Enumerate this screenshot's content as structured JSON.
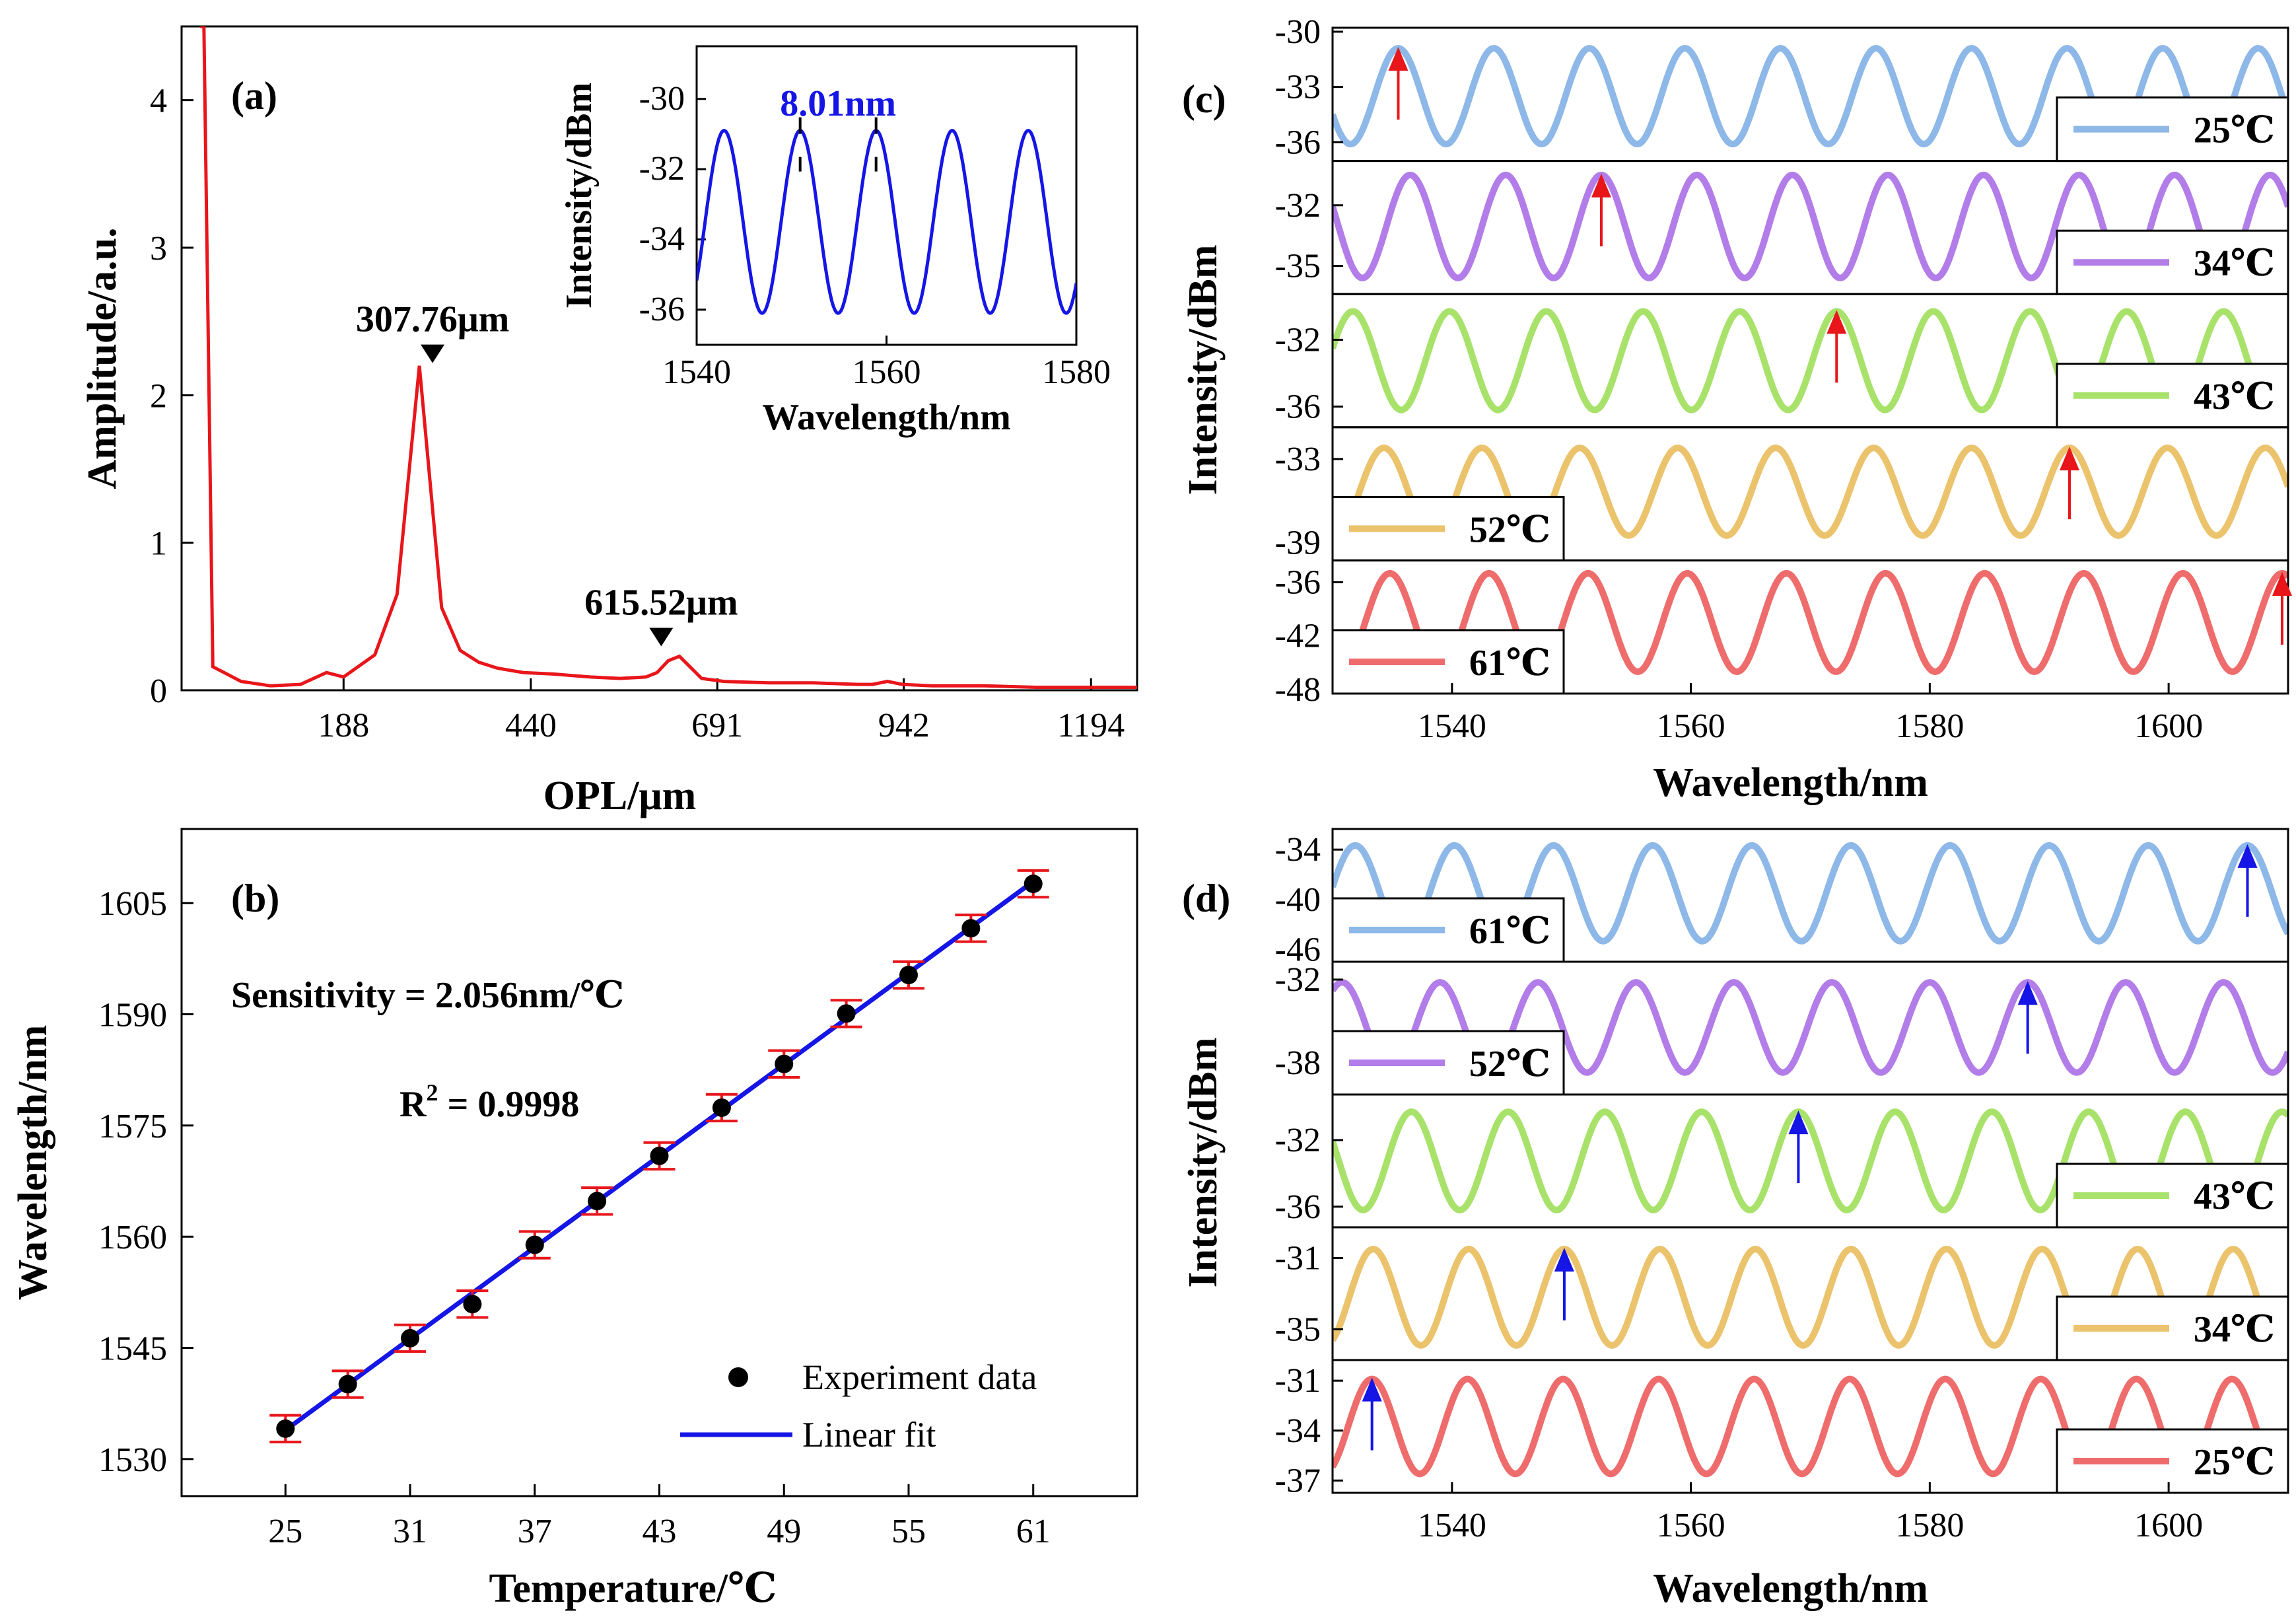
{
  "chart_data": [
    {
      "panel": "a",
      "type": "line",
      "label": "(a)",
      "xlabel": "OPL/μm",
      "ylabel": "Amplitude/a.u.",
      "xlim": [
        -30,
        1256
      ],
      "ylim": [
        0,
        4.5
      ],
      "xticks": [
        188,
        440,
        691,
        942,
        1194
      ],
      "yticks": [
        0,
        1,
        2,
        3,
        4
      ],
      "series": [
        {
          "color": "#e8161b",
          "x": [
            -5,
            0,
            12,
            50,
            90,
            130,
            165,
            188,
            230,
            260,
            290,
            320,
            345,
            370,
            395,
            430,
            470,
            520,
            560,
            595,
            610,
            625,
            640,
            670,
            700,
            760,
            820,
            880,
            900,
            920,
            940,
            980,
            1050,
            1120,
            1194,
            1256
          ],
          "y": [
            4.5,
            4.5,
            0.16,
            0.06,
            0.03,
            0.04,
            0.12,
            0.09,
            0.24,
            0.65,
            2.2,
            0.56,
            0.27,
            0.19,
            0.15,
            0.12,
            0.11,
            0.09,
            0.08,
            0.09,
            0.12,
            0.2,
            0.23,
            0.08,
            0.06,
            0.05,
            0.05,
            0.04,
            0.04,
            0.06,
            0.04,
            0.03,
            0.03,
            0.02,
            0.02,
            0.02
          ]
        }
      ],
      "annotations": [
        {
          "text": "307.76μm",
          "x": 307.76,
          "y": 2.2
        },
        {
          "text": "615.52μm",
          "x": 615.52,
          "y": 0.28
        }
      ],
      "inset": {
        "type": "line",
        "xlabel": "Wavelength/nm",
        "ylabel": "Intensity/dBm",
        "xlim": [
          1540,
          1580
        ],
        "ylim": [
          -37,
          -28.5
        ],
        "xticks": [
          1540,
          1560,
          1580
        ],
        "yticks": [
          -36,
          -34,
          -32,
          -30
        ],
        "color": "#1515e6",
        "annotation": "8.01nm",
        "marker_x": [
          1550.9,
          1558.9
        ],
        "period_nm": 8.01,
        "peak_nm": 1550.9,
        "max_dbm": -30.9,
        "min_dbm": -36.1
      }
    },
    {
      "panel": "b",
      "type": "scatter",
      "label": "(b)",
      "xlabel": "Temperature/℃",
      "ylabel": "Wavelength/nm",
      "xlim": [
        20,
        66
      ],
      "ylim": [
        1525,
        1615
      ],
      "xticks": [
        25,
        31,
        37,
        43,
        49,
        55,
        61
      ],
      "yticks": [
        1530,
        1545,
        1560,
        1575,
        1590,
        1605
      ],
      "series": [
        {
          "name": "Experiment data",
          "color": "#000000",
          "x": [
            25,
            28,
            31,
            34,
            37,
            40,
            43,
            46,
            49,
            52,
            55,
            58,
            61
          ],
          "y": [
            1534.1,
            1540.1,
            1546.3,
            1550.9,
            1558.9,
            1564.8,
            1570.9,
            1577.4,
            1583.3,
            1590.1,
            1595.3,
            1601.6,
            1607.6
          ],
          "error": 1.8,
          "error_color": "#e8161b"
        },
        {
          "name": "Linear fit",
          "color": "#1515e6",
          "slope": 2.056,
          "intercept": 1482.5,
          "x_range": [
            25,
            61
          ]
        }
      ],
      "annotations": [
        "Sensitivity = 2.056nm/℃",
        "R",
        "2",
        " = 0.9998"
      ]
    },
    {
      "panel": "c",
      "type": "line",
      "label": "(c)",
      "xlabel": "Wavelength/nm",
      "ylabel": "Intensity/dBm",
      "xlim": [
        1530,
        1610
      ],
      "xticks": [
        1540,
        1560,
        1580,
        1600
      ],
      "arrow_color": "#e8161b",
      "subplots": [
        {
          "temp": "25℃",
          "color": "#8db8e8",
          "ylim": [
            -36.8,
            -30
          ],
          "yticks": [
            -30,
            -33,
            -36
          ],
          "ytick_labels": [
            "-30",
            "-33",
            "-36"
          ],
          "period": 8.0,
          "peak": 1535.5,
          "max": -30.9,
          "min": -36.1,
          "arrow_nm": 1535.5,
          "legend_pos": "right"
        },
        {
          "temp": "34℃",
          "color": "#b27de8",
          "ylim": [
            -36.2,
            -30
          ],
          "yticks": [
            -32,
            -35
          ],
          "ytick_labels": [
            "-32",
            "-35"
          ],
          "period": 8.0,
          "peak": 1552.5,
          "max": -30.5,
          "min": -35.6,
          "arrow_nm": 1552.5,
          "legend_pos": "right"
        },
        {
          "temp": "43℃",
          "color": "#a8e26a",
          "ylim": [
            -37,
            -29.5
          ],
          "yticks": [
            -32,
            -36
          ],
          "ytick_labels": [
            "-32",
            "-36"
          ],
          "period": 8.1,
          "peak": 1572.2,
          "max": -30.3,
          "min": -36.2,
          "arrow_nm": 1572.2,
          "legend_pos": "right"
        },
        {
          "temp": "52℃",
          "color": "#ebc36c",
          "ylim": [
            -40,
            -31
          ],
          "yticks": [
            -33,
            -39
          ],
          "ytick_labels": [
            "-33",
            "-39"
          ],
          "period": 8.2,
          "peak": 1591.7,
          "max": -32.2,
          "min": -38.5,
          "arrow_nm": 1591.7,
          "legend_pos": "left"
        },
        {
          "temp": "61℃",
          "color": "#ef6c6c",
          "ylim": [
            -48,
            -34
          ],
          "yticks": [
            -36,
            -42,
            -48
          ],
          "ytick_labels": [
            "-36",
            "-42",
            "-48"
          ],
          "period": 8.3,
          "peak": 1609.5,
          "max": -35,
          "min": -46,
          "arrow_nm": 1609.5,
          "legend_pos": "left"
        }
      ]
    },
    {
      "panel": "d",
      "type": "line",
      "label": "(d)",
      "xlabel": "Wavelength/nm",
      "ylabel": "Intensity/dBm",
      "xlim": [
        1530,
        1610
      ],
      "xticks": [
        1540,
        1560,
        1580,
        1600
      ],
      "arrow_color": "#1515e6",
      "subplots": [
        {
          "temp": "61℃",
          "color": "#8db8e8",
          "ylim": [
            -47,
            -32
          ],
          "yticks": [
            -34,
            -40,
            -46
          ],
          "ytick_labels": [
            "-34",
            "-40",
            "-46"
          ],
          "period": 8.3,
          "peak": 1606.6,
          "max": -33.5,
          "min": -45,
          "arrow_nm": 1606.6,
          "legend_pos": "left"
        },
        {
          "temp": "52℃",
          "color": "#b27de8",
          "ylim": [
            -40,
            -31
          ],
          "yticks": [
            -32,
            -38
          ],
          "ytick_labels": [
            "-32",
            "-38"
          ],
          "period": 8.2,
          "peak": 1588.2,
          "max": -32.2,
          "min": -38.7,
          "arrow_nm": 1588.2,
          "legend_pos": "left"
        },
        {
          "temp": "43℃",
          "color": "#a8e26a",
          "ylim": [
            -37,
            -29.5
          ],
          "yticks": [
            -32,
            -36
          ],
          "ytick_labels": [
            "-32",
            "-36"
          ],
          "period": 8.1,
          "peak": 1569.0,
          "max": -30.3,
          "min": -36.2,
          "arrow_nm": 1569.0,
          "legend_pos": "right"
        },
        {
          "temp": "34℃",
          "color": "#ebc36c",
          "ylim": [
            -36.5,
            -29.5
          ],
          "yticks": [
            -31,
            -35
          ],
          "ytick_labels": [
            "-31",
            "-35"
          ],
          "period": 8.0,
          "peak": 1549.4,
          "max": -30.5,
          "min": -35.9,
          "arrow_nm": 1549.4,
          "legend_pos": "right"
        },
        {
          "temp": "25℃",
          "color": "#ef6c6c",
          "ylim": [
            -37.5,
            -30
          ],
          "yticks": [
            -31,
            -34,
            -37
          ],
          "ytick_labels": [
            "-31",
            "-34",
            "-37"
          ],
          "period": 8.0,
          "peak": 1533.3,
          "max": -30.9,
          "min": -36.6,
          "arrow_nm": 1533.3,
          "legend_pos": "right"
        }
      ]
    }
  ]
}
